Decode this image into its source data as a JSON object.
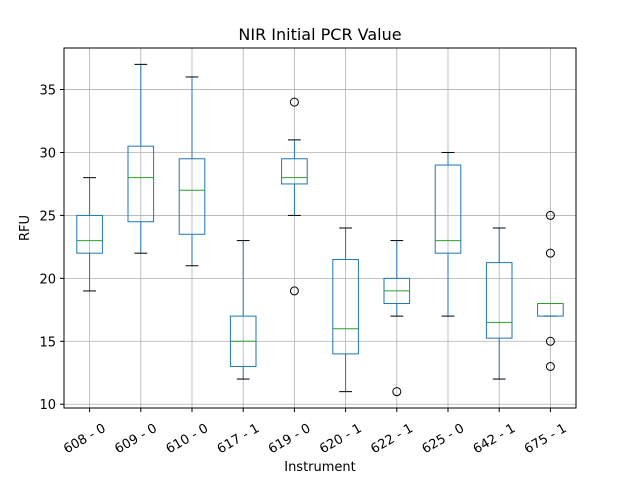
{
  "chart_data": {
    "type": "box",
    "title": "NIR Initial PCR Value",
    "xlabel": "Instrument",
    "ylabel": "RFU",
    "ylim": [
      9.7,
      38.3
    ],
    "yticks": [
      10,
      15,
      20,
      25,
      30,
      35
    ],
    "grid": true,
    "categories": [
      "608 - 0",
      "609 - 0",
      "610 - 0",
      "617 - 1",
      "619 - 0",
      "620 - 1",
      "622 - 1",
      "625 - 0",
      "642 - 1",
      "675 - 1"
    ],
    "boxes": [
      {
        "whislo": 19,
        "q1": 22,
        "med": 23,
        "q3": 25,
        "whishi": 28,
        "fliers": []
      },
      {
        "whislo": 22,
        "q1": 24.5,
        "med": 28,
        "q3": 30.5,
        "whishi": 37,
        "fliers": []
      },
      {
        "whislo": 21,
        "q1": 23.5,
        "med": 27,
        "q3": 29.5,
        "whishi": 36,
        "fliers": []
      },
      {
        "whislo": 12,
        "q1": 13,
        "med": 15,
        "q3": 17,
        "whishi": 23,
        "fliers": []
      },
      {
        "whislo": 25,
        "q1": 27.5,
        "med": 28,
        "q3": 29.5,
        "whishi": 31,
        "fliers": [
          34,
          19
        ]
      },
      {
        "whislo": 11,
        "q1": 14,
        "med": 16,
        "q3": 21.5,
        "whishi": 24,
        "fliers": []
      },
      {
        "whislo": 17,
        "q1": 18,
        "med": 19,
        "q3": 20,
        "whishi": 23,
        "fliers": [
          11
        ]
      },
      {
        "whislo": 17,
        "q1": 22,
        "med": 23,
        "q3": 29,
        "whishi": 30,
        "fliers": []
      },
      {
        "whislo": 12,
        "q1": 15.25,
        "med": 16.5,
        "q3": 21.25,
        "whishi": 24,
        "fliers": []
      },
      {
        "whislo": 17,
        "q1": 17,
        "med": 18,
        "q3": 18,
        "whishi": 18,
        "fliers": [
          25,
          22,
          15,
          13
        ]
      }
    ],
    "colors": {
      "box": "#1f77b4",
      "median": "#2ca02c",
      "grid": "#b0b0b0",
      "flier": "#000000"
    }
  }
}
